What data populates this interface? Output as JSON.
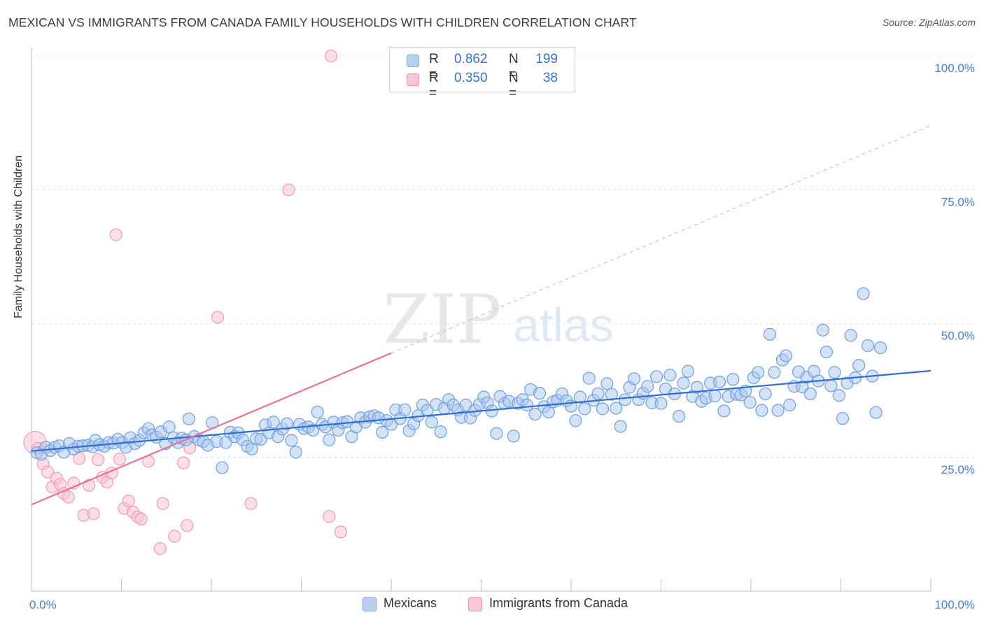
{
  "title": "MEXICAN VS IMMIGRANTS FROM CANADA FAMILY HOUSEHOLDS WITH CHILDREN CORRELATION CHART",
  "source": "Source: ZipAtlas.com",
  "watermark": {
    "zip": "ZIP",
    "atlas": "atlas"
  },
  "legend": {
    "r_label": "R =",
    "n_label": "N =",
    "rows": [
      {
        "r": "0.862",
        "n": "199",
        "color": "#7ea6e0",
        "fill": "#b9cff0"
      },
      {
        "r": "0.350",
        "n": "38",
        "color": "#f08ab0",
        "fill": "#f9c6d8"
      }
    ]
  },
  "bottom_legend": [
    "Mexicans",
    "Immigrants from Canada"
  ],
  "chart_data": {
    "type": "scatter",
    "ylabel": "Family Households with Children",
    "xlabel": "",
    "xlim": [
      0,
      100
    ],
    "ylim": [
      0,
      105
    ],
    "x_tick_labels": [
      "0.0%",
      "100.0%"
    ],
    "y_tick_labels": [
      "25.0%",
      "50.0%",
      "75.0%",
      "100.0%"
    ],
    "y_ticks": [
      25,
      50,
      75,
      100
    ],
    "grid": true,
    "legend_position": "top-center",
    "colors": {
      "blue": "#6f9fdc",
      "blue_line": "#2f6fd0",
      "pink": "#f29ab9",
      "pink_line": "#e8709a",
      "tick_text": "#4a7fd0"
    },
    "trendlines": [
      {
        "series": "Mexicans",
        "x": [
          0,
          100
        ],
        "y": [
          26.2,
          41.2
        ],
        "style": "solid"
      },
      {
        "series": "Immigrants from Canada",
        "x": [
          0,
          40
        ],
        "y": [
          16.2,
          44.5
        ],
        "style": "solid"
      },
      {
        "series": "Immigrants from Canada",
        "x": [
          40,
          100
        ],
        "y": [
          44.5,
          87.0
        ],
        "style": "dashed"
      }
    ],
    "series": [
      {
        "name": "Mexicans",
        "points": [
          [
            0.6,
            25.9
          ],
          [
            1.1,
            25.6
          ],
          [
            1.6,
            26.9
          ],
          [
            2.1,
            26.3
          ],
          [
            2.6,
            26.9
          ],
          [
            3.1,
            27.2
          ],
          [
            3.6,
            26.0
          ],
          [
            4.2,
            27.6
          ],
          [
            4.7,
            26.6
          ],
          [
            5.2,
            27.1
          ],
          [
            5.7,
            27.2
          ],
          [
            6.3,
            27.3
          ],
          [
            6.8,
            27.0
          ],
          [
            7.1,
            28.2
          ],
          [
            7.6,
            27.4
          ],
          [
            8.1,
            27.1
          ],
          [
            8.6,
            27.8
          ],
          [
            9.1,
            27.7
          ],
          [
            9.6,
            28.4
          ],
          [
            10.1,
            27.8
          ],
          [
            10.5,
            26.9
          ],
          [
            11.0,
            28.7
          ],
          [
            11.5,
            27.6
          ],
          [
            12.0,
            28.2
          ],
          [
            12.5,
            29.6
          ],
          [
            13.0,
            30.4
          ],
          [
            13.4,
            29.2
          ],
          [
            13.9,
            28.8
          ],
          [
            14.4,
            29.8
          ],
          [
            14.9,
            27.6
          ],
          [
            15.3,
            30.7
          ],
          [
            15.8,
            28.7
          ],
          [
            16.3,
            27.8
          ],
          [
            16.7,
            28.6
          ],
          [
            17.2,
            28.3
          ],
          [
            17.5,
            32.2
          ],
          [
            18.1,
            28.9
          ],
          [
            18.6,
            28.3
          ],
          [
            19.1,
            28.0
          ],
          [
            19.6,
            27.3
          ],
          [
            20.1,
            31.5
          ],
          [
            20.6,
            28.0
          ],
          [
            21.2,
            23.1
          ],
          [
            21.6,
            27.8
          ],
          [
            22.1,
            29.7
          ],
          [
            22.6,
            28.9
          ],
          [
            23.0,
            29.6
          ],
          [
            23.5,
            28.3
          ],
          [
            24.0,
            27.1
          ],
          [
            24.5,
            26.6
          ],
          [
            25.0,
            28.5
          ],
          [
            25.5,
            28.4
          ],
          [
            26.0,
            31.1
          ],
          [
            26.4,
            29.6
          ],
          [
            26.9,
            31.6
          ],
          [
            27.4,
            28.9
          ],
          [
            27.9,
            30.3
          ],
          [
            28.4,
            31.3
          ],
          [
            28.9,
            28.2
          ],
          [
            29.4,
            26.0
          ],
          [
            29.8,
            31.2
          ],
          [
            30.3,
            30.4
          ],
          [
            30.8,
            30.7
          ],
          [
            31.3,
            30.1
          ],
          [
            31.8,
            33.5
          ],
          [
            32.3,
            31.2
          ],
          [
            32.7,
            30.7
          ],
          [
            33.1,
            28.3
          ],
          [
            33.6,
            31.6
          ],
          [
            34.1,
            30.1
          ],
          [
            34.6,
            31.5
          ],
          [
            35.1,
            31.7
          ],
          [
            35.6,
            28.9
          ],
          [
            36.1,
            30.7
          ],
          [
            36.6,
            32.4
          ],
          [
            37.1,
            31.6
          ],
          [
            37.6,
            32.6
          ],
          [
            38.1,
            32.8
          ],
          [
            38.6,
            32.4
          ],
          [
            39.0,
            29.7
          ],
          [
            39.5,
            31.9
          ],
          [
            40.0,
            31.2
          ],
          [
            40.5,
            33.9
          ],
          [
            41.0,
            32.3
          ],
          [
            41.5,
            33.9
          ],
          [
            42.0,
            30.0
          ],
          [
            42.5,
            31.3
          ],
          [
            43.0,
            32.8
          ],
          [
            43.5,
            34.8
          ],
          [
            44.0,
            33.8
          ],
          [
            44.5,
            31.6
          ],
          [
            45.0,
            34.9
          ],
          [
            45.5,
            29.8
          ],
          [
            45.9,
            34.2
          ],
          [
            46.4,
            35.8
          ],
          [
            46.9,
            34.8
          ],
          [
            47.4,
            33.9
          ],
          [
            47.8,
            32.5
          ],
          [
            48.3,
            34.8
          ],
          [
            48.8,
            32.4
          ],
          [
            49.3,
            33.8
          ],
          [
            49.8,
            34.9
          ],
          [
            50.3,
            36.3
          ],
          [
            50.7,
            35.2
          ],
          [
            51.2,
            33.7
          ],
          [
            51.7,
            29.5
          ],
          [
            52.1,
            36.4
          ],
          [
            52.6,
            35.1
          ],
          [
            53.1,
            35.5
          ],
          [
            53.6,
            29.0
          ],
          [
            54.1,
            35.1
          ],
          [
            54.6,
            35.8
          ],
          [
            55.1,
            34.8
          ],
          [
            55.5,
            37.7
          ],
          [
            56.0,
            33.1
          ],
          [
            56.5,
            37.0
          ],
          [
            57.0,
            34.5
          ],
          [
            57.5,
            33.5
          ],
          [
            58.0,
            35.4
          ],
          [
            58.5,
            35.7
          ],
          [
            59.0,
            36.9
          ],
          [
            59.5,
            35.6
          ],
          [
            60.0,
            34.6
          ],
          [
            60.5,
            31.9
          ],
          [
            61.0,
            36.3
          ],
          [
            61.5,
            34.1
          ],
          [
            62.0,
            39.8
          ],
          [
            62.5,
            35.7
          ],
          [
            63.0,
            36.9
          ],
          [
            63.5,
            34.1
          ],
          [
            64.0,
            38.8
          ],
          [
            64.5,
            36.8
          ],
          [
            65.0,
            34.2
          ],
          [
            65.5,
            30.8
          ],
          [
            66.0,
            35.8
          ],
          [
            66.5,
            38.1
          ],
          [
            67.0,
            39.7
          ],
          [
            67.5,
            35.8
          ],
          [
            68.0,
            37.0
          ],
          [
            68.5,
            38.3
          ],
          [
            69.0,
            35.2
          ],
          [
            69.5,
            40.1
          ],
          [
            70.0,
            35.1
          ],
          [
            70.5,
            37.8
          ],
          [
            71.0,
            40.4
          ],
          [
            71.5,
            36.9
          ],
          [
            72.0,
            32.7
          ],
          [
            72.5,
            38.9
          ],
          [
            73.0,
            41.1
          ],
          [
            73.5,
            36.4
          ],
          [
            74.0,
            38.1
          ],
          [
            74.5,
            35.5
          ],
          [
            75.0,
            36.1
          ],
          [
            75.5,
            38.9
          ],
          [
            76.0,
            36.5
          ],
          [
            76.5,
            39.1
          ],
          [
            77.0,
            33.7
          ],
          [
            77.5,
            36.4
          ],
          [
            78.0,
            39.6
          ],
          [
            78.4,
            36.8
          ],
          [
            78.9,
            36.7
          ],
          [
            79.4,
            37.4
          ],
          [
            79.9,
            35.3
          ],
          [
            80.3,
            39.9
          ],
          [
            80.8,
            40.9
          ],
          [
            81.2,
            33.8
          ],
          [
            81.6,
            36.9
          ],
          [
            82.1,
            48.0
          ],
          [
            82.6,
            40.9
          ],
          [
            83.0,
            33.8
          ],
          [
            83.5,
            43.2
          ],
          [
            83.9,
            44.0
          ],
          [
            84.3,
            34.8
          ],
          [
            84.8,
            38.3
          ],
          [
            85.3,
            41.0
          ],
          [
            85.7,
            38.2
          ],
          [
            86.2,
            40.0
          ],
          [
            86.6,
            36.9
          ],
          [
            87.0,
            41.1
          ],
          [
            87.5,
            39.3
          ],
          [
            88.0,
            48.8
          ],
          [
            88.4,
            44.7
          ],
          [
            88.9,
            38.4
          ],
          [
            89.3,
            40.9
          ],
          [
            89.8,
            36.6
          ],
          [
            90.2,
            32.3
          ],
          [
            90.7,
            38.9
          ],
          [
            91.1,
            47.8
          ],
          [
            91.6,
            39.9
          ],
          [
            92.0,
            42.2
          ],
          [
            92.5,
            55.6
          ],
          [
            93.0,
            45.9
          ],
          [
            93.5,
            40.2
          ],
          [
            93.9,
            33.4
          ],
          [
            94.4,
            45.5
          ]
        ]
      },
      {
        "name": "Immigrants from Canada",
        "points": [
          [
            0.4,
            27.8
          ],
          [
            0.7,
            26.7
          ],
          [
            1.3,
            23.8
          ],
          [
            1.8,
            22.3
          ],
          [
            2.3,
            19.5
          ],
          [
            2.8,
            21.1
          ],
          [
            3.2,
            20.0
          ],
          [
            3.6,
            18.3
          ],
          [
            4.1,
            17.6
          ],
          [
            4.7,
            20.2
          ],
          [
            5.3,
            24.8
          ],
          [
            5.8,
            14.2
          ],
          [
            6.4,
            19.8
          ],
          [
            6.9,
            14.5
          ],
          [
            7.4,
            24.6
          ],
          [
            7.9,
            21.3
          ],
          [
            8.4,
            20.4
          ],
          [
            8.9,
            22.1
          ],
          [
            9.4,
            66.6
          ],
          [
            9.8,
            24.7
          ],
          [
            10.3,
            15.5
          ],
          [
            10.8,
            16.9
          ],
          [
            11.3,
            14.8
          ],
          [
            11.8,
            13.9
          ],
          [
            12.2,
            13.5
          ],
          [
            13.0,
            24.3
          ],
          [
            14.3,
            8.0
          ],
          [
            14.6,
            16.4
          ],
          [
            15.9,
            10.3
          ],
          [
            16.9,
            24.0
          ],
          [
            17.3,
            12.3
          ],
          [
            17.6,
            26.8
          ],
          [
            20.7,
            51.2
          ],
          [
            24.4,
            16.4
          ],
          [
            28.6,
            75.0
          ],
          [
            33.1,
            14.0
          ],
          [
            33.3,
            100.0
          ],
          [
            34.4,
            11.1
          ]
        ]
      }
    ]
  }
}
